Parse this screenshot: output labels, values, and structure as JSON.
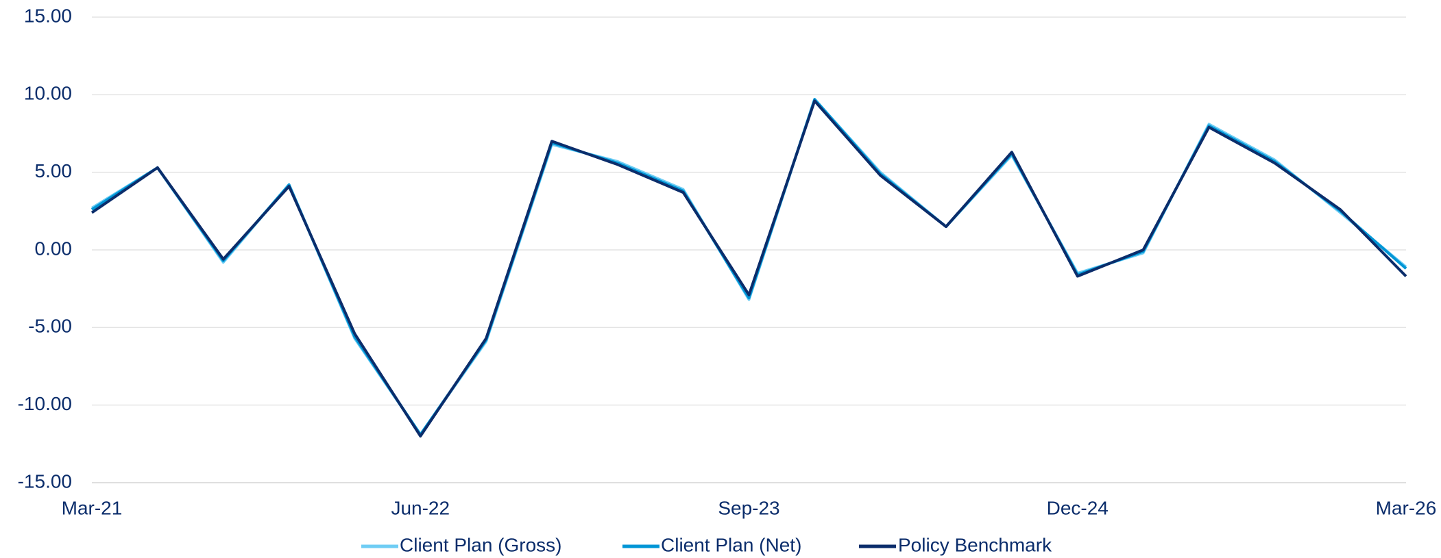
{
  "chart_data": {
    "type": "line",
    "categories": [
      "Mar-21",
      null,
      null,
      null,
      null,
      "Jun-22",
      null,
      null,
      null,
      null,
      "Sep-23",
      null,
      null,
      null,
      null,
      "Dec-24",
      null,
      null,
      null,
      null,
      "Mar-26"
    ],
    "series": [
      {
        "name": "Client Plan (Gross)",
        "color": "#6fcdf4",
        "values": [
          2.7,
          5.3,
          -0.8,
          4.2,
          -5.7,
          -11.9,
          -5.9,
          6.8,
          5.7,
          3.9,
          -3.2,
          9.7,
          5.0,
          1.5,
          6.1,
          -1.5,
          -0.2,
          8.1,
          5.8,
          2.4,
          -1.1
        ]
      },
      {
        "name": "Client Plan (Net)",
        "color": "#0096d6",
        "values": [
          2.6,
          5.3,
          -0.7,
          4.2,
          -5.6,
          -11.9,
          -5.8,
          6.9,
          5.6,
          3.8,
          -3.1,
          9.7,
          4.9,
          1.5,
          6.2,
          -1.6,
          -0.1,
          8.0,
          5.7,
          2.5,
          -1.2
        ]
      },
      {
        "name": "Policy Benchmark",
        "color": "#0b2d6b",
        "values": [
          2.4,
          5.3,
          -0.6,
          4.1,
          -5.4,
          -12.0,
          -5.7,
          7.0,
          5.5,
          3.7,
          -2.9,
          9.6,
          4.8,
          1.5,
          6.3,
          -1.7,
          0.0,
          7.9,
          5.6,
          2.6,
          -1.7
        ]
      }
    ],
    "ylim": [
      -15,
      15
    ],
    "yticks": [
      {
        "value": -15,
        "label": "-15.00"
      },
      {
        "value": -10,
        "label": "-10.00"
      },
      {
        "value": -5,
        "label": "-5.00"
      },
      {
        "value": 0,
        "label": "0.00"
      },
      {
        "value": 5,
        "label": "5.00"
      },
      {
        "value": 10,
        "label": "10.00"
      },
      {
        "value": 15,
        "label": "15.00"
      }
    ],
    "grid": true,
    "legend": "bottom"
  }
}
